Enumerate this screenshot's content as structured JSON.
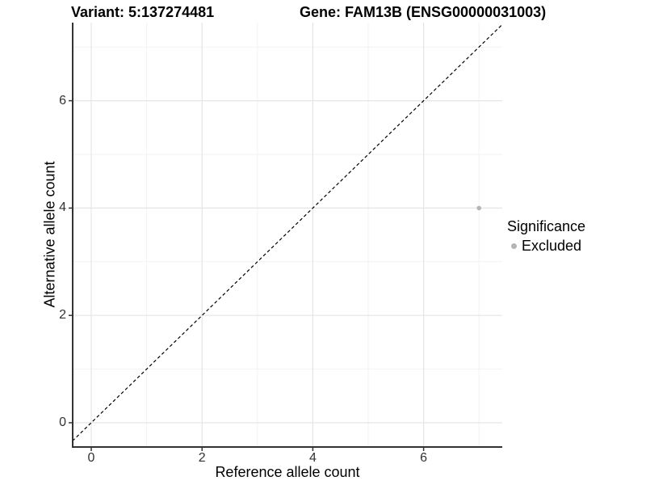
{
  "chart_data": {
    "type": "scatter",
    "titles": {
      "left": "Variant: 5:137274481",
      "right": "Gene: FAM13B (ENSG00000031003)"
    },
    "xlabel": "Reference allele count",
    "ylabel": "Alternative allele count",
    "xlim": [
      -0.34,
      7.42
    ],
    "ylim": [
      -0.45,
      7.45
    ],
    "x_major_ticks": [
      0,
      2,
      4,
      6
    ],
    "y_major_ticks": [
      0,
      2,
      4,
      6
    ],
    "x_minor_ticks": [
      1,
      3,
      5,
      7
    ],
    "y_minor_ticks": [
      1,
      3,
      5,
      7
    ],
    "grid": "major and minor gridlines on white panel",
    "reference_line": {
      "equation": "y = x",
      "style": "dashed",
      "color": "#000000"
    },
    "series": [
      {
        "name": "Excluded",
        "color": "#b5b5b5",
        "points": [
          {
            "x": 7,
            "y": 4
          }
        ]
      }
    ],
    "legend": {
      "title": "Significance",
      "position": "right",
      "items": [
        {
          "label": "Excluded",
          "color": "#b5b5b5"
        }
      ]
    },
    "colors": {
      "grid_major": "#e5e5e5",
      "grid_minor": "#f2f2f2",
      "axis_line": "#333333",
      "tick_mark": "#333333",
      "tick_text": "#333333",
      "point": "#b5b5b5"
    }
  }
}
